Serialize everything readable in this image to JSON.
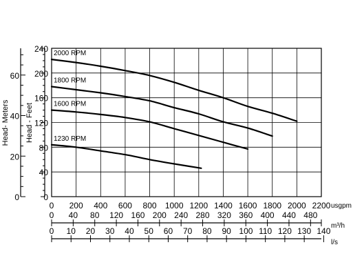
{
  "chart_data": {
    "type": "line",
    "title": "",
    "grid": true,
    "x_axes": [
      {
        "unit": "usgpm",
        "ticks": [
          0,
          200,
          400,
          600,
          800,
          1000,
          1200,
          1400,
          1600,
          1800,
          2000,
          2200
        ],
        "range": [
          0,
          2200
        ]
      },
      {
        "unit": "m³/h",
        "ticks": [
          0,
          40,
          80,
          120,
          160,
          200,
          240,
          280,
          320,
          360,
          400,
          440,
          480
        ],
        "range": [
          0,
          500
        ]
      },
      {
        "unit": "l/s",
        "ticks": [
          0,
          10,
          20,
          30,
          40,
          50,
          60,
          70,
          80,
          90,
          100,
          110,
          120,
          130,
          140
        ],
        "range": [
          0,
          138.8
        ]
      }
    ],
    "y_axes": [
      {
        "label": "Head - Feet",
        "ticks": [
          0,
          40,
          80,
          120,
          160,
          200,
          240
        ],
        "range": [
          0,
          240
        ]
      },
      {
        "label": "Head- Meters",
        "ticks": [
          0,
          20,
          40,
          60
        ],
        "range": [
          0,
          73.2
        ]
      }
    ],
    "series": [
      {
        "name": "2000 RPM",
        "x": [
          0,
          200,
          400,
          600,
          800,
          1000,
          1200,
          1400,
          1600,
          1800,
          2000
        ],
        "y": [
          222,
          217,
          211,
          204,
          196,
          185,
          172,
          160,
          146,
          135,
          122
        ]
      },
      {
        "name": "1800 RPM",
        "x": [
          0,
          200,
          400,
          600,
          800,
          1000,
          1200,
          1400,
          1600,
          1800
        ],
        "y": [
          178,
          173,
          168,
          162,
          155,
          144,
          134,
          121,
          111,
          98
        ]
      },
      {
        "name": "1600 RPM",
        "x": [
          0,
          200,
          400,
          600,
          800,
          1000,
          1200,
          1400,
          1600
        ],
        "y": [
          140,
          137,
          133,
          128,
          121,
          110,
          99,
          88,
          77
        ]
      },
      {
        "name": "1230 RPM",
        "x": [
          0,
          200,
          400,
          600,
          800,
          1000,
          1220
        ],
        "y": [
          84,
          80,
          74,
          68,
          60,
          53,
          46
        ]
      }
    ]
  }
}
